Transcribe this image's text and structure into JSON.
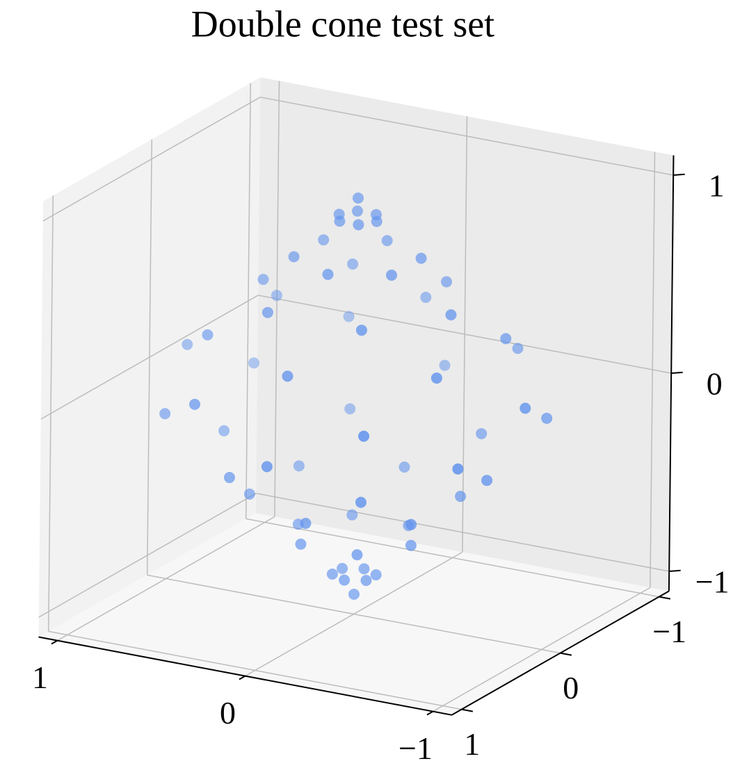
{
  "chart_data": {
    "type": "scatter3d",
    "title": "Double cone test set",
    "color": "#6495ed",
    "x": [
      0,
      0.1,
      0.05,
      -0.05,
      -0.1,
      -0.05,
      0.05,
      0.26,
      0,
      -0.26,
      -0.26,
      0,
      0.26,
      0.5,
      0.25,
      -0.25,
      -0.5,
      -0.25,
      0.25,
      0.61,
      0,
      -0.61,
      -0.61,
      0,
      0.61,
      0.9,
      0.45,
      -0.45,
      -0.9,
      -0.45,
      0.45,
      0.78,
      0,
      -0.78,
      -0.78,
      0,
      0.78,
      0.7,
      0.35,
      -0.35,
      -0.7,
      -0.35,
      0.35,
      0.43,
      0,
      -0.43,
      -0.43,
      0,
      0.43,
      0.3,
      0.15,
      -0.15,
      -0.3,
      -0.15,
      0.15,
      0.09,
      0,
      -0.09,
      -0.09,
      0,
      0.09,
      0
    ],
    "y": [
      0,
      0,
      0.09,
      0.09,
      0,
      -0.09,
      -0.09,
      0.15,
      0.3,
      0.15,
      -0.15,
      -0.3,
      -0.15,
      0,
      0.43,
      0.43,
      0,
      -0.43,
      -0.43,
      0.35,
      0.7,
      0.35,
      -0.35,
      -0.7,
      -0.35,
      0,
      0.78,
      0.78,
      0,
      -0.78,
      -0.78,
      0.45,
      0.9,
      0.45,
      -0.45,
      -0.9,
      -0.45,
      0,
      0.61,
      0.61,
      0,
      -0.61,
      -0.61,
      0.25,
      0.5,
      0.25,
      -0.25,
      -0.5,
      -0.25,
      0,
      0.26,
      0.26,
      0,
      -0.26,
      -0.26,
      0.05,
      0.1,
      0.05,
      -0.05,
      -0.1,
      -0.05,
      0
    ],
    "z": [
      1,
      0.9,
      0.9,
      0.9,
      0.9,
      0.9,
      0.9,
      0.7,
      0.7,
      0.7,
      0.7,
      0.7,
      0.7,
      0.5,
      0.5,
      0.5,
      0.5,
      0.5,
      0.5,
      0.3,
      0.3,
      0.3,
      0.3,
      0.3,
      0.3,
      0.1,
      0.1,
      0.1,
      0.1,
      0.1,
      0.1,
      -0.1,
      -0.1,
      -0.1,
      -0.1,
      -0.1,
      -0.1,
      -0.3,
      -0.3,
      -0.3,
      -0.3,
      -0.3,
      -0.3,
      -0.5,
      -0.5,
      -0.5,
      -0.5,
      -0.5,
      -0.5,
      -0.7,
      -0.7,
      -0.7,
      -0.7,
      -0.7,
      -0.7,
      -0.9,
      -0.9,
      -0.9,
      -0.9,
      -0.9,
      -0.9,
      -1
    ],
    "xlim": [
      -1.1,
      1.1
    ],
    "ylim": [
      -1.1,
      1.1
    ],
    "zlim": [
      -1.1,
      1.1
    ],
    "xticks": [
      {
        "value": -1,
        "label": "−1"
      },
      0,
      1
    ],
    "yticks": [
      {
        "value": -1,
        "label": "−1"
      },
      0,
      1
    ],
    "zticks": [
      {
        "value": -1,
        "label": "−1"
      },
      0,
      1
    ],
    "grid": true
  }
}
